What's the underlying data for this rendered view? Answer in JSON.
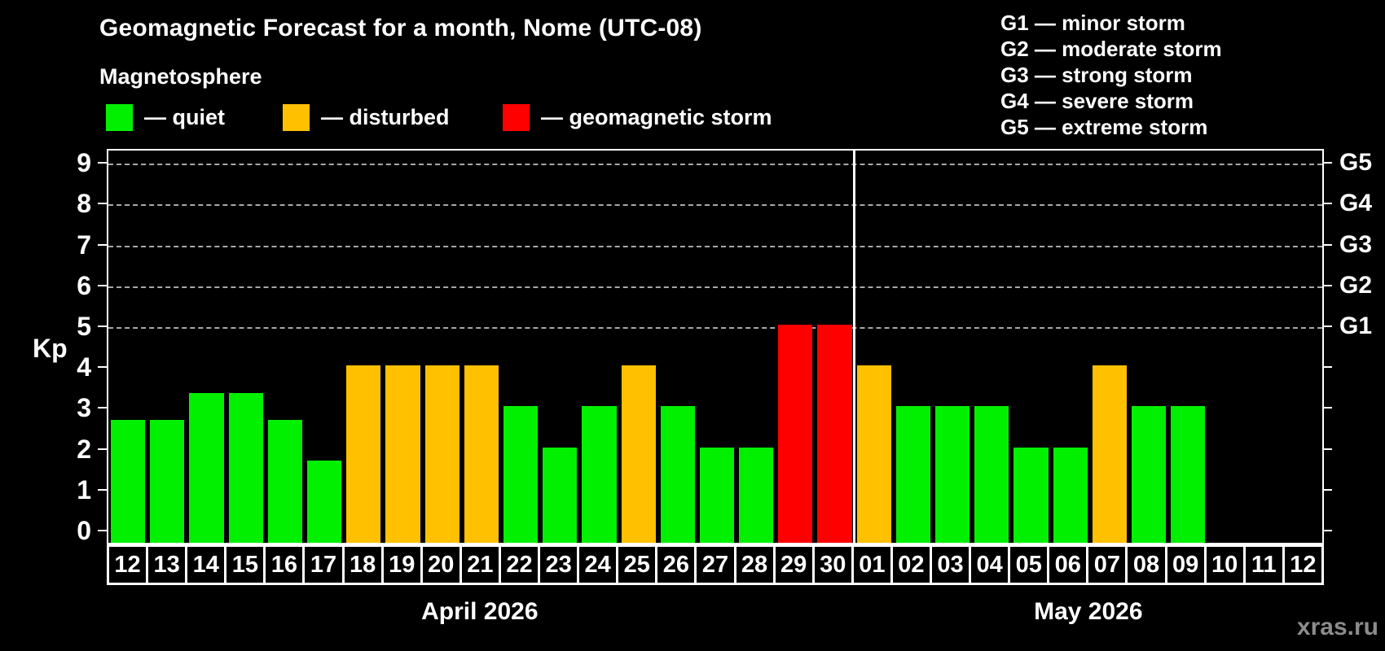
{
  "title": "Geomagnetic Forecast for a month, Nome (UTC-08)",
  "subtitle": "Magnetosphere",
  "legend": {
    "quiet_label": "— quiet",
    "disturbed_label": "— disturbed",
    "storm_label": "— geomagnetic storm"
  },
  "g_legend": [
    "G1 — minor storm",
    "G2 — moderate storm",
    "G3 — strong storm",
    "G4 — severe storm",
    "G5 — extreme storm"
  ],
  "watermark": "xras.ru",
  "colors": {
    "quiet": "#00F000",
    "disturbed": "#FFC000",
    "storm": "#FF0000",
    "grid": "#A8A8A8",
    "axis": "#FFFFFF",
    "text": "#FFFFFF",
    "watermark": "#8C8C8C",
    "background": "#000000"
  },
  "chart_data": {
    "type": "bar",
    "title": "Geomagnetic Forecast for a month, Nome (UTC-08)",
    "ylabel": "Kp",
    "ylim": [
      -0.35,
      9.35
    ],
    "yticks": [
      0,
      1,
      2,
      3,
      4,
      5,
      6,
      7,
      8,
      9
    ],
    "grid_levels": [
      5,
      6,
      7,
      8,
      9
    ],
    "right_axis_labels": [
      {
        "kp": 5,
        "label": "G1"
      },
      {
        "kp": 6,
        "label": "G2"
      },
      {
        "kp": 7,
        "label": "G3"
      },
      {
        "kp": 8,
        "label": "G4"
      },
      {
        "kp": 9,
        "label": "G5"
      }
    ],
    "series": [
      {
        "month": "April 2026",
        "points": [
          {
            "day": "12",
            "kp": 2.67,
            "level": "quiet"
          },
          {
            "day": "13",
            "kp": 2.67,
            "level": "quiet"
          },
          {
            "day": "14",
            "kp": 3.33,
            "level": "quiet"
          },
          {
            "day": "15",
            "kp": 3.33,
            "level": "quiet"
          },
          {
            "day": "16",
            "kp": 2.67,
            "level": "quiet"
          },
          {
            "day": "17",
            "kp": 1.67,
            "level": "quiet"
          },
          {
            "day": "18",
            "kp": 4,
            "level": "disturbed"
          },
          {
            "day": "19",
            "kp": 4,
            "level": "disturbed"
          },
          {
            "day": "20",
            "kp": 4,
            "level": "disturbed"
          },
          {
            "day": "21",
            "kp": 4,
            "level": "disturbed"
          },
          {
            "day": "22",
            "kp": 3,
            "level": "quiet"
          },
          {
            "day": "23",
            "kp": 2,
            "level": "quiet"
          },
          {
            "day": "24",
            "kp": 3,
            "level": "quiet"
          },
          {
            "day": "25",
            "kp": 4,
            "level": "disturbed"
          },
          {
            "day": "26",
            "kp": 3,
            "level": "quiet"
          },
          {
            "day": "27",
            "kp": 2,
            "level": "quiet"
          },
          {
            "day": "28",
            "kp": 2,
            "level": "quiet"
          },
          {
            "day": "29",
            "kp": 5,
            "level": "storm"
          },
          {
            "day": "30",
            "kp": 5,
            "level": "storm"
          }
        ]
      },
      {
        "month": "May 2026",
        "points": [
          {
            "day": "01",
            "kp": 4,
            "level": "disturbed"
          },
          {
            "day": "02",
            "kp": 3,
            "level": "quiet"
          },
          {
            "day": "03",
            "kp": 3,
            "level": "quiet"
          },
          {
            "day": "04",
            "kp": 3,
            "level": "quiet"
          },
          {
            "day": "05",
            "kp": 2,
            "level": "quiet"
          },
          {
            "day": "06",
            "kp": 2,
            "level": "quiet"
          },
          {
            "day": "07",
            "kp": 4,
            "level": "disturbed"
          },
          {
            "day": "08",
            "kp": 3,
            "level": "quiet"
          },
          {
            "day": "09",
            "kp": 3,
            "level": "quiet"
          },
          {
            "day": "10",
            "kp": null,
            "level": null
          },
          {
            "day": "11",
            "kp": null,
            "level": null
          },
          {
            "day": "12",
            "kp": null,
            "level": null
          }
        ]
      }
    ]
  }
}
